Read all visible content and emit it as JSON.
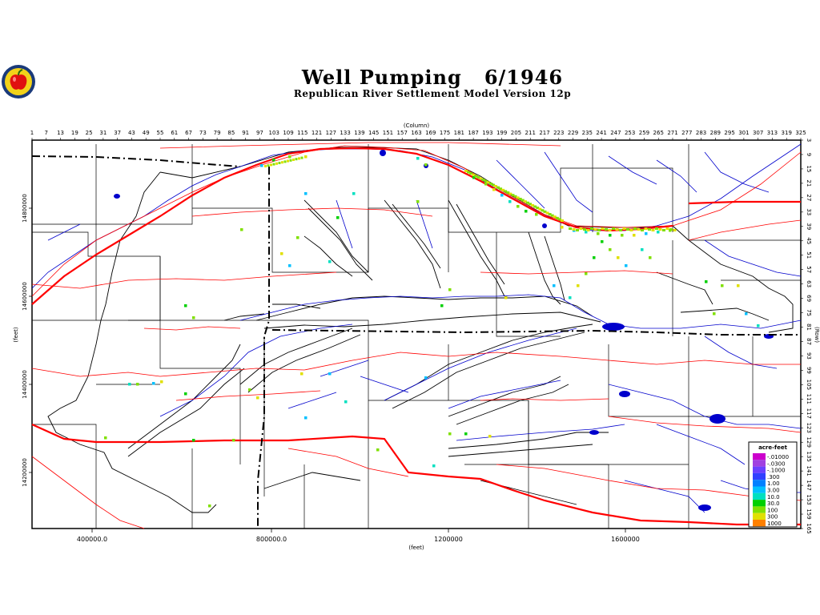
{
  "header": {
    "title": "Well Pumping   6/1946",
    "subtitle": "Republican River Settlement Model Version 12p"
  },
  "axes": {
    "column_label": "(Column)",
    "row_label": "(Row)",
    "feet_label_left": "(feet)",
    "feet_label_bottom": "(feet)",
    "column_ticks": [
      "1",
      "7",
      "13",
      "19",
      "25",
      "31",
      "37",
      "43",
      "49",
      "55",
      "61",
      "67",
      "73",
      "79",
      "85",
      "91",
      "97",
      "103",
      "109",
      "115",
      "121",
      "127",
      "133",
      "139",
      "145",
      "151",
      "157",
      "163",
      "169",
      "175",
      "181",
      "187",
      "193",
      "199",
      "205",
      "211",
      "217",
      "223",
      "229",
      "235",
      "241",
      "247",
      "253",
      "259",
      "265",
      "271",
      "277",
      "283",
      "289",
      "295",
      "301",
      "307",
      "313",
      "319",
      "325"
    ],
    "row_ticks": [
      "3",
      "9",
      "15",
      "21",
      "27",
      "33",
      "39",
      "45",
      "51",
      "57",
      "63",
      "69",
      "75",
      "81",
      "87",
      "93",
      "99",
      "105",
      "111",
      "117",
      "123",
      "129",
      "135",
      "141",
      "147",
      "153",
      "159",
      "165"
    ],
    "x_feet_ticks": [
      "400000.0",
      "800000.0",
      "1200000",
      "1600000"
    ],
    "y_feet_ticks": [
      "14800000",
      "14600000",
      "14400000",
      "14200000"
    ]
  },
  "legend": {
    "title": "acre-feet",
    "entries": [
      {
        "label": "-.01000",
        "color": "#cc00cc"
      },
      {
        "label": "-.0300",
        "color": "#a040e0"
      },
      {
        "label": "-.1000",
        "color": "#6a40ff"
      },
      {
        "label": ".300",
        "color": "#3040ff"
      },
      {
        "label": "1.00",
        "color": "#0080ff"
      },
      {
        "label": "3.00",
        "color": "#00c0ff"
      },
      {
        "label": "10.0",
        "color": "#00e0c0"
      },
      {
        "label": "30.0",
        "color": "#00d000"
      },
      {
        "label": "100",
        "color": "#80e000"
      },
      {
        "label": "300",
        "color": "#e0e000"
      },
      {
        "label": "1000",
        "color": "#ff8000"
      }
    ]
  },
  "colors": {
    "river": "#0000cc",
    "road": "#ff0000",
    "boundary": "#000000"
  },
  "logo_icon": "apple-icon"
}
